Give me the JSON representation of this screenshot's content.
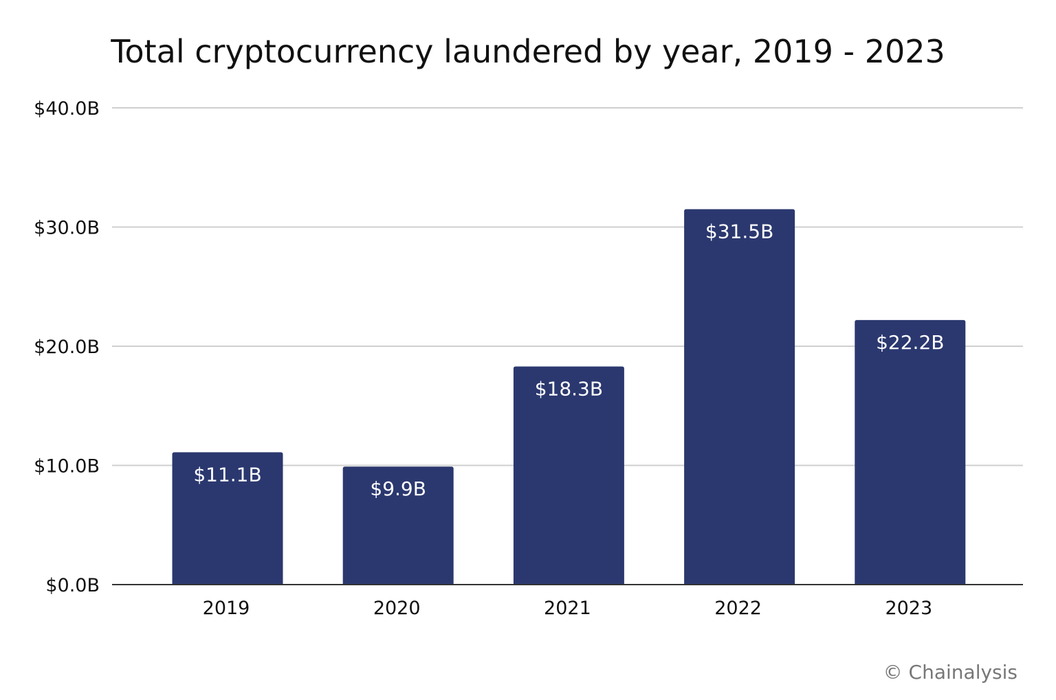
{
  "chart_data": {
    "type": "bar",
    "title": "Total cryptocurrency laundered by year, 2019 - 2023",
    "categories": [
      "2019",
      "2020",
      "2021",
      "2022",
      "2023"
    ],
    "values": [
      11.1,
      9.9,
      18.3,
      31.5,
      22.2
    ],
    "data_labels": [
      "$11.1B",
      "$9.9B",
      "$18.3B",
      "$31.5B",
      "$22.2B"
    ],
    "ylim": [
      0,
      40
    ],
    "yticks": [
      0,
      10,
      20,
      30,
      40
    ],
    "ytick_labels": [
      "$0.0B",
      "$10.0B",
      "$20.0B",
      "$30.0B",
      "$40.0B"
    ],
    "xlabel": "",
    "ylabel": "",
    "grid": true,
    "bar_color": "#2b386f",
    "label_color": "#ffffff"
  },
  "credit": "© Chainalysis"
}
